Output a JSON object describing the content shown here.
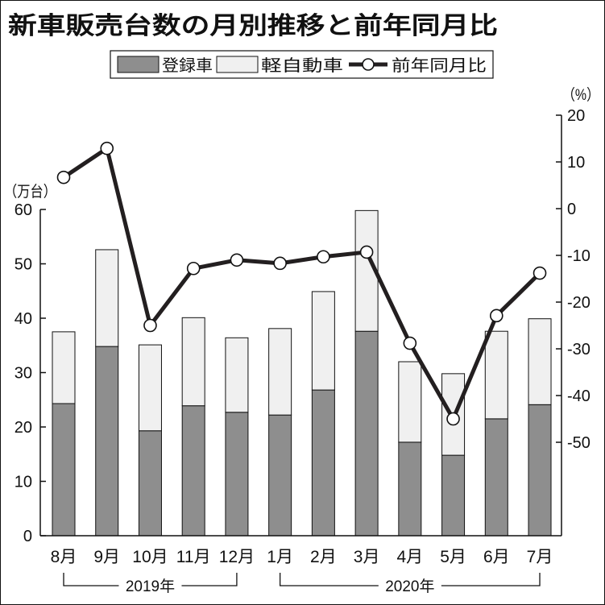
{
  "chart_data": {
    "type": "bar",
    "title": "新車販売台数の月別推移と前年同月比",
    "categories": [
      "8月",
      "9月",
      "10月",
      "11月",
      "12月",
      "1月",
      "2月",
      "3月",
      "4月",
      "5月",
      "6月",
      "7月"
    ],
    "series": [
      {
        "name": "登録車",
        "type": "bar",
        "stacked": true,
        "axis": "left",
        "color": "#8e8e8e",
        "values": [
          24.3,
          34.8,
          19.3,
          23.9,
          22.7,
          22.2,
          26.8,
          37.6,
          17.2,
          14.8,
          21.5,
          24.1
        ]
      },
      {
        "name": "軽自動車",
        "type": "bar",
        "stacked": true,
        "axis": "left",
        "color": "#f0f0f0",
        "values": [
          13.2,
          17.8,
          15.8,
          16.2,
          13.7,
          15.9,
          18.1,
          22.2,
          14.8,
          15.0,
          16.1,
          15.8
        ]
      },
      {
        "name": "前年同月比",
        "type": "line",
        "axis": "right",
        "color": "#231f20",
        "values": [
          6.7,
          12.9,
          -25.0,
          -12.8,
          -11.0,
          -11.7,
          -10.3,
          -9.3,
          -28.8,
          -45.0,
          -22.9,
          -13.8
        ]
      }
    ],
    "ylabel": "（万台）",
    "y2label": "（%）",
    "ylim": [
      0,
      60
    ],
    "yticks": [
      0,
      10,
      20,
      30,
      40,
      50,
      60
    ],
    "y2lim": [
      -70,
      20
    ],
    "y2ticks": [
      20,
      10,
      0,
      -10,
      -20,
      -30,
      -40,
      -50
    ],
    "year_groups": [
      {
        "label": "2019年",
        "from": "8月",
        "to": "12月"
      },
      {
        "label": "2020年",
        "from": "1月",
        "to": "7月"
      }
    ],
    "legend": "top",
    "grid": false
  }
}
